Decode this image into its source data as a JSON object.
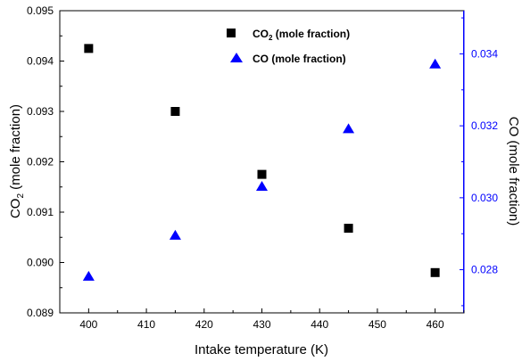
{
  "chart_data": {
    "type": "scatter",
    "x": [
      400,
      415,
      430,
      445,
      460
    ],
    "xlabel": "Intake temperature (K)",
    "xlim": [
      395,
      465
    ],
    "xticks": [
      400,
      410,
      420,
      430,
      440,
      450,
      460
    ],
    "ylabel_left": {
      "main": "CO",
      "sub": "2",
      "rest": " (mole fraction)"
    },
    "ylabel_right": "CO (mole fraction)",
    "ylim_left": [
      0.089,
      0.095
    ],
    "yticks_left": [
      "0.089",
      "0.090",
      "0.091",
      "0.092",
      "0.093",
      "0.094",
      "0.095"
    ],
    "ylim_right": [
      0.0268,
      0.0352
    ],
    "yticks_right": [
      "0.028",
      "0.030",
      "0.032",
      "0.034"
    ],
    "series": [
      {
        "legend": {
          "main": "CO",
          "sub": "2",
          "rest": " (mole fraction)"
        },
        "axis": "left",
        "marker": "square",
        "color": "#000000",
        "values": [
          0.09425,
          0.093,
          0.09175,
          0.09068,
          0.0898
        ]
      },
      {
        "legend": {
          "main": "CO",
          "sub": "",
          "rest": " (mole fraction)"
        },
        "axis": "right",
        "marker": "triangle",
        "color": "#0000ff",
        "values": [
          0.02782,
          0.02896,
          0.03032,
          0.03192,
          0.03372
        ]
      }
    ],
    "right_axis_color": "#0000ff",
    "legend_position": "top-center",
    "grid": false
  }
}
